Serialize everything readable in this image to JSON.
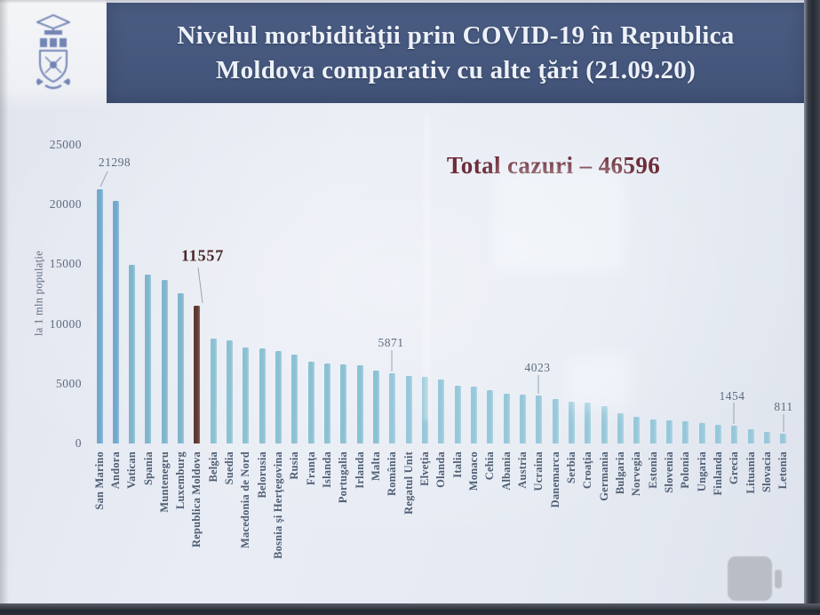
{
  "slide": {
    "title_line1": "Nivelul morbidităţii prin COVID-19 în Republica",
    "title_line2": "Moldova comparativ cu alte ţări (21.09.20)",
    "logo": "crest-emblem",
    "accent_blue": "#44567b",
    "accent_maroon": "#6c2d39"
  },
  "chart_data": {
    "type": "bar",
    "title": "Total cazuri – 46596",
    "ylabel": "la 1 mln populaţie",
    "xlabel": "",
    "ylim": [
      0,
      25000
    ],
    "yticks": [
      25000,
      20000,
      15000,
      10000,
      5000,
      0
    ],
    "grid": false,
    "legend": false,
    "bar_color": "#8fc2d6",
    "highlight": {
      "category": "Republica Moldova",
      "color": "#5e392f"
    },
    "categories": [
      "San Marino",
      "Andora",
      "Vatican",
      "Spania",
      "Muntenegru",
      "Luxemburg",
      "Republica Moldova",
      "Belgia",
      "Suedia",
      "Macedonia de Nord",
      "Belorusia",
      "Bosnia şi Herţegovina",
      "Rusia",
      "Franţa",
      "Islanda",
      "Portugalia",
      "Irlanda",
      "Malta",
      "România",
      "Regatul Unit",
      "Elveţia",
      "Olanda",
      "Italia",
      "Monaco",
      "Cehia",
      "Albania",
      "Austria",
      "Ucraina",
      "Danemarca",
      "Serbia",
      "Croaţia",
      "Germania",
      "Bulgaria",
      "Norvegia",
      "Estonia",
      "Slovenia",
      "Polonia",
      "Ungaria",
      "Finlanda",
      "Grecia",
      "Lituania",
      "Slovacia",
      "Letonia"
    ],
    "values": [
      21298,
      20300,
      14950,
      14150,
      13700,
      12550,
      11557,
      8750,
      8650,
      8000,
      7950,
      7750,
      7450,
      6820,
      6700,
      6620,
      6550,
      6080,
      5871,
      5690,
      5560,
      5320,
      4800,
      4750,
      4450,
      4200,
      4100,
      4023,
      3720,
      3500,
      3390,
      3090,
      2530,
      2240,
      2040,
      1950,
      1890,
      1700,
      1550,
      1454,
      1200,
      1000,
      811
    ],
    "annotations": [
      {
        "category": "San Marino",
        "text": "21298",
        "highlight": false
      },
      {
        "category": "Republica Moldova",
        "text": "11557",
        "highlight": true
      },
      {
        "category": "România",
        "text": "5871",
        "highlight": false
      },
      {
        "category": "Ucraina",
        "text": "4023",
        "highlight": false
      },
      {
        "category": "Grecia",
        "text": "1454",
        "highlight": false
      },
      {
        "category": "Letonia",
        "text": "811",
        "highlight": false
      }
    ]
  }
}
